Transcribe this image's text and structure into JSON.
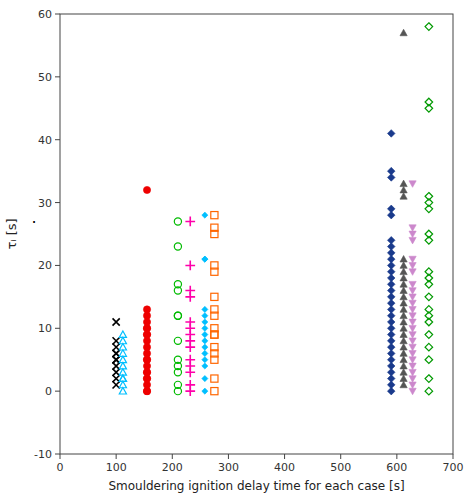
{
  "chart_data": {
    "type": "scatter",
    "xlabel": "Smouldering ignition delay time for each case [s]",
    "ylabel": "τᵢ [s]",
    "xlim": [
      0,
      700
    ],
    "ylim": [
      -10,
      60
    ],
    "xticks": [
      0,
      100,
      200,
      300,
      400,
      500,
      600,
      700
    ],
    "yticks": [
      -10,
      0,
      10,
      20,
      30,
      40,
      50,
      60
    ],
    "grid": false,
    "annotations": [
      {
        "text": "·"
      }
    ],
    "series": [
      {
        "color": "#000000",
        "marker": "x",
        "x": [
          100,
          100,
          100,
          100,
          100,
          100,
          100,
          100,
          100,
          100,
          100
        ],
        "values": [
          11,
          8,
          7,
          6,
          6,
          5,
          5,
          4,
          3,
          2,
          1
        ]
      },
      {
        "color": "#00BFFF",
        "marker": "triangle-up-open",
        "x": [
          112,
          112,
          112,
          112,
          112,
          112,
          112,
          112,
          112,
          112,
          112
        ],
        "values": [
          9,
          8,
          7,
          6,
          5,
          4,
          3,
          2,
          2,
          1,
          0
        ]
      },
      {
        "color": "#EE0000",
        "marker": "circle",
        "x": [
          155,
          155,
          155,
          155,
          155,
          155,
          155,
          155,
          155,
          155,
          155,
          155,
          155,
          155,
          155,
          155,
          155,
          155,
          155,
          155,
          155
        ],
        "values": [
          32,
          13,
          12,
          11,
          10,
          10,
          9,
          9,
          8,
          7,
          6,
          5,
          5,
          4,
          3,
          3,
          2,
          2,
          1,
          0,
          0
        ]
      },
      {
        "color": "#00BB00",
        "marker": "circle-open",
        "x": [
          210,
          210,
          210,
          210,
          210,
          210,
          210,
          210,
          210,
          210,
          210,
          210
        ],
        "values": [
          27,
          23,
          17,
          16,
          12,
          12,
          8,
          5,
          4,
          3,
          1,
          0
        ]
      },
      {
        "color": "#FF00AA",
        "marker": "plus",
        "x": [
          232,
          232,
          232,
          232,
          232,
          232,
          232,
          232,
          232,
          232,
          232,
          232,
          232,
          232
        ],
        "values": [
          27,
          20,
          16,
          15,
          11,
          10,
          9,
          8,
          7,
          5,
          4,
          3,
          1,
          0
        ]
      },
      {
        "color": "#00BFFF",
        "marker": "diamond-small",
        "x": [
          258,
          258,
          258,
          258,
          258,
          258,
          258,
          258,
          258,
          258,
          258,
          258,
          258,
          258,
          258
        ],
        "values": [
          28,
          21,
          21,
          13,
          12,
          11,
          10,
          9,
          8,
          7,
          6,
          5,
          4,
          2,
          0
        ]
      },
      {
        "color": "#FF6600",
        "marker": "square-open",
        "x": [
          275,
          275,
          275,
          275,
          275,
          275,
          275,
          275,
          275,
          275,
          275,
          275,
          275,
          275,
          275,
          275
        ],
        "values": [
          28,
          26,
          25,
          20,
          19,
          15,
          13,
          12,
          10,
          9,
          9,
          7,
          6,
          5,
          2,
          0
        ]
      },
      {
        "color": "#1A3A8C",
        "marker": "diamond",
        "x": [
          590,
          590,
          590,
          590,
          590,
          590,
          590,
          590,
          590,
          590,
          590,
          590,
          590,
          590,
          590,
          590,
          590,
          590,
          590,
          590,
          590,
          590,
          590,
          590,
          590,
          590,
          590,
          590,
          590,
          590
        ],
        "values": [
          41,
          35,
          34,
          29,
          28,
          24,
          23,
          22,
          21,
          20,
          19,
          18,
          17,
          16,
          15,
          14,
          13,
          12,
          11,
          10,
          9,
          8,
          7,
          6,
          5,
          4,
          3,
          2,
          1,
          0
        ]
      },
      {
        "color": "#555555",
        "marker": "triangle-up",
        "x": [
          612,
          612,
          612,
          612,
          612,
          612,
          612,
          612,
          612,
          612,
          612,
          612,
          612,
          612,
          612,
          612,
          612,
          612,
          612,
          612,
          612,
          612,
          612,
          612,
          612
        ],
        "values": [
          57,
          33,
          32,
          31,
          21,
          20,
          19,
          18,
          17,
          16,
          15,
          14,
          13,
          12,
          11,
          10,
          9,
          8,
          7,
          6,
          5,
          4,
          3,
          2,
          1
        ]
      },
      {
        "color": "#CC88CC",
        "marker": "triangle-down",
        "x": [
          628,
          628,
          628,
          628,
          628,
          628,
          628,
          628,
          628,
          628,
          628,
          628,
          628,
          628,
          628,
          628,
          628,
          628,
          628,
          628,
          628,
          628,
          628,
          628,
          628
        ],
        "values": [
          33,
          26,
          25,
          24,
          21,
          20,
          19,
          17,
          16,
          15,
          14,
          13,
          12,
          11,
          10,
          9,
          8,
          7,
          6,
          5,
          4,
          3,
          2,
          1,
          0
        ]
      },
      {
        "color": "#009900",
        "marker": "diamond-open",
        "x": [
          657,
          657,
          657,
          657,
          657,
          657,
          657,
          657,
          657,
          657,
          657,
          657,
          657,
          657,
          657,
          657,
          657,
          657,
          657,
          657
        ],
        "values": [
          58,
          46,
          45,
          31,
          30,
          29,
          25,
          24,
          19,
          18,
          17,
          15,
          13,
          12,
          11,
          9,
          7,
          5,
          2,
          0
        ]
      }
    ]
  }
}
